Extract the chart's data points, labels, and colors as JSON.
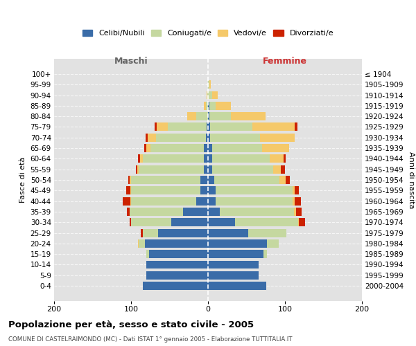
{
  "age_groups": [
    "100+",
    "95-99",
    "90-94",
    "85-89",
    "80-84",
    "75-79",
    "70-74",
    "65-69",
    "60-64",
    "55-59",
    "50-54",
    "45-49",
    "40-44",
    "35-39",
    "30-34",
    "25-29",
    "20-24",
    "15-19",
    "10-14",
    "5-9",
    "0-4"
  ],
  "birth_years": [
    "≤ 1904",
    "1905-1909",
    "1910-1914",
    "1915-1919",
    "1920-1924",
    "1925-1929",
    "1930-1934",
    "1935-1939",
    "1940-1944",
    "1945-1949",
    "1950-1954",
    "1955-1959",
    "1960-1964",
    "1965-1969",
    "1970-1974",
    "1975-1979",
    "1980-1984",
    "1985-1989",
    "1990-1994",
    "1995-1999",
    "2000-2004"
  ],
  "male_celibi": [
    0,
    0,
    0,
    0,
    0,
    2,
    3,
    5,
    5,
    5,
    10,
    10,
    15,
    32,
    48,
    65,
    82,
    77,
    80,
    80,
    85
  ],
  "male_coniugati": [
    0,
    0,
    1,
    3,
    15,
    50,
    65,
    70,
    80,
    85,
    90,
    90,
    85,
    70,
    52,
    20,
    8,
    3,
    0,
    0,
    0
  ],
  "male_vedovi": [
    0,
    0,
    1,
    2,
    12,
    15,
    10,
    5,
    3,
    2,
    2,
    1,
    1,
    0,
    0,
    0,
    1,
    0,
    0,
    0,
    0
  ],
  "male_divorziati": [
    0,
    0,
    0,
    0,
    0,
    2,
    3,
    3,
    3,
    2,
    2,
    5,
    10,
    3,
    2,
    2,
    0,
    0,
    0,
    0,
    0
  ],
  "female_nubili": [
    0,
    0,
    0,
    2,
    2,
    3,
    3,
    5,
    5,
    5,
    8,
    10,
    10,
    15,
    35,
    52,
    77,
    72,
    66,
    66,
    76
  ],
  "female_coniugate": [
    0,
    2,
    5,
    8,
    28,
    55,
    65,
    65,
    75,
    80,
    85,
    100,
    100,
    97,
    82,
    50,
    15,
    5,
    0,
    0,
    0
  ],
  "female_vedove": [
    0,
    2,
    8,
    20,
    45,
    55,
    45,
    35,
    18,
    10,
    8,
    3,
    3,
    2,
    1,
    0,
    0,
    0,
    0,
    0,
    0
  ],
  "female_divorziate": [
    0,
    0,
    0,
    0,
    0,
    3,
    0,
    0,
    3,
    5,
    5,
    5,
    8,
    8,
    8,
    0,
    0,
    0,
    0,
    0,
    0
  ],
  "color_celibi": "#3a6ca8",
  "color_coniugati": "#c5d8a0",
  "color_vedovi": "#f5c96a",
  "color_divorziati": "#cc2200",
  "bg_color": "#e2e2e2",
  "xlim": 200,
  "title": "Popolazione per età, sesso e stato civile - 2005",
  "subtitle": "COMUNE DI CASTELRAIMONDO (MC) - Dati ISTAT 1° gennaio 2005 - Elaborazione TUTTITALIA.IT",
  "ylabel_left": "Fasce di età",
  "ylabel_right": "Anni di nascita",
  "label_maschi": "Maschi",
  "label_femmine": "Femmine",
  "legend_labels": [
    "Celibi/Nubili",
    "Coniugati/e",
    "Vedovi/e",
    "Divorziati/e"
  ]
}
